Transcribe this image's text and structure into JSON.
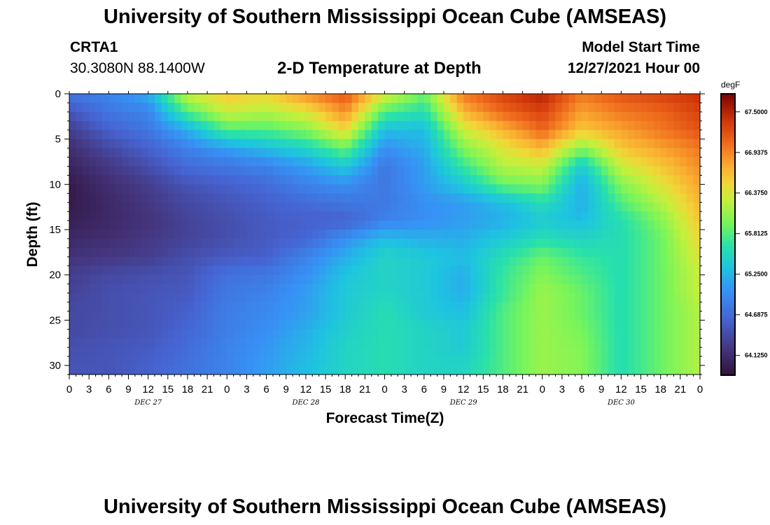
{
  "header": {
    "title": "University of Southern Mississippi Ocean Cube (AMSEAS)",
    "station": "CRTA1",
    "coords": "30.3080N  88.1400W",
    "subtitle": "2-D Temperature at Depth",
    "model_start_label": "Model Start Time",
    "model_start_value": "12/27/2021 Hour 00"
  },
  "footer": {
    "title_repeat": "University of Southern Mississippi Ocean Cube (AMSEAS)"
  },
  "chart_data": {
    "type": "heatmap",
    "title": "2-D Temperature at Depth",
    "xlabel": "Forecast Time(Z)",
    "ylabel": "Depth (ft)",
    "x_hours_range": [
      0,
      96
    ],
    "ylim": [
      0,
      31
    ],
    "x_tick_labels": [
      "0",
      "3",
      "6",
      "9",
      "12",
      "15",
      "18",
      "21",
      "0",
      "3",
      "6",
      "9",
      "12",
      "15",
      "18",
      "21",
      "0",
      "3",
      "6",
      "9",
      "12",
      "15",
      "18",
      "21",
      "0",
      "3",
      "6",
      "9",
      "12",
      "15",
      "18",
      "21",
      "0"
    ],
    "day_labels": [
      {
        "label": "DEC 27",
        "center_hour": 12
      },
      {
        "label": "DEC 28",
        "center_hour": 36
      },
      {
        "label": "DEC 29",
        "center_hour": 60
      },
      {
        "label": "DEC 30",
        "center_hour": 84
      }
    ],
    "y_ticks": [
      0,
      5,
      10,
      15,
      20,
      25,
      30
    ],
    "colorbar": {
      "unit": "degF",
      "range": [
        63.85,
        67.75
      ],
      "tick_values": [
        67.5,
        66.9375,
        66.375,
        65.8125,
        65.25,
        64.6875,
        64.125
      ],
      "tick_labels": [
        "67.5000",
        "66.9375",
        "66.3750",
        "65.8125",
        "65.2500",
        "64.6875",
        "64.1250"
      ]
    },
    "x_hours": [
      0,
      6,
      12,
      18,
      24,
      30,
      36,
      42,
      48,
      54,
      60,
      66,
      72,
      78,
      84,
      90,
      96
    ],
    "depths_ft": [
      0,
      2,
      4,
      6,
      8,
      10,
      12,
      14,
      16,
      18,
      20,
      22,
      24,
      26,
      28,
      30,
      31
    ],
    "values_degF": [
      [
        64.8,
        64.9,
        65.2,
        66.3,
        66.6,
        66.5,
        66.9,
        67.2,
        66.4,
        65.9,
        67.0,
        67.3,
        67.5,
        67.0,
        67.2,
        67.3,
        67.4
      ],
      [
        64.5,
        64.8,
        64.9,
        65.8,
        66.3,
        66.2,
        66.4,
        66.9,
        65.8,
        65.6,
        66.7,
        67.1,
        67.3,
        66.8,
        67.0,
        67.1,
        67.3
      ],
      [
        64.3,
        64.6,
        64.8,
        65.2,
        65.8,
        65.8,
        66.0,
        66.5,
        65.3,
        65.3,
        66.3,
        66.7,
        67.1,
        66.6,
        66.8,
        67.0,
        67.2
      ],
      [
        64.15,
        64.4,
        64.6,
        64.9,
        65.1,
        65.3,
        65.5,
        65.9,
        65.0,
        65.2,
        66.0,
        66.4,
        66.7,
        66.0,
        66.6,
        66.8,
        67.0
      ],
      [
        64.05,
        64.25,
        64.45,
        64.7,
        64.8,
        64.9,
        65.1,
        65.4,
        64.8,
        65.1,
        65.7,
        66.2,
        66.3,
        65.4,
        66.3,
        66.6,
        66.9
      ],
      [
        63.95,
        64.15,
        64.3,
        64.5,
        64.6,
        64.7,
        64.9,
        65.0,
        64.8,
        65.1,
        65.4,
        65.9,
        66.0,
        65.2,
        66.0,
        66.4,
        66.8
      ],
      [
        63.95,
        64.1,
        64.25,
        64.4,
        64.5,
        64.6,
        64.7,
        64.8,
        64.8,
        65.0,
        65.1,
        65.3,
        65.6,
        65.2,
        65.8,
        66.2,
        66.7
      ],
      [
        64.0,
        64.1,
        64.2,
        64.35,
        64.45,
        64.55,
        64.6,
        64.6,
        64.9,
        65.0,
        65.1,
        65.2,
        65.4,
        65.3,
        65.6,
        66.0,
        66.6
      ],
      [
        64.1,
        64.15,
        64.25,
        64.35,
        64.45,
        64.55,
        64.65,
        65.0,
        65.3,
        65.2,
        65.2,
        65.4,
        65.6,
        65.5,
        65.6,
        65.9,
        66.5
      ],
      [
        64.2,
        64.25,
        64.3,
        64.45,
        64.55,
        64.6,
        64.9,
        65.2,
        65.5,
        65.4,
        65.3,
        65.6,
        65.9,
        65.7,
        65.6,
        65.9,
        66.4
      ],
      [
        64.3,
        64.4,
        64.45,
        64.5,
        64.75,
        64.8,
        65.0,
        65.35,
        65.5,
        65.4,
        65.2,
        65.7,
        66.0,
        65.8,
        65.6,
        65.9,
        66.3
      ],
      [
        64.35,
        64.45,
        64.5,
        64.55,
        64.8,
        64.9,
        65.1,
        65.4,
        65.5,
        65.4,
        65.2,
        65.7,
        66.1,
        65.9,
        65.6,
        65.9,
        66.3
      ],
      [
        64.4,
        64.45,
        64.5,
        64.6,
        64.85,
        64.95,
        65.1,
        65.4,
        65.6,
        65.4,
        65.3,
        65.8,
        66.1,
        65.9,
        65.6,
        65.9,
        66.2
      ],
      [
        64.4,
        64.45,
        64.5,
        64.65,
        64.85,
        65.0,
        65.2,
        65.45,
        65.6,
        65.5,
        65.4,
        65.8,
        66.1,
        65.95,
        65.6,
        65.9,
        66.2
      ],
      [
        64.45,
        64.5,
        64.55,
        64.7,
        64.9,
        65.05,
        65.25,
        65.5,
        65.6,
        65.5,
        65.4,
        65.8,
        66.1,
        66.0,
        65.6,
        65.9,
        66.2
      ],
      [
        64.5,
        64.5,
        64.6,
        64.75,
        64.9,
        65.1,
        65.3,
        65.5,
        65.6,
        65.5,
        65.5,
        65.8,
        66.1,
        66.0,
        65.6,
        65.9,
        66.2
      ],
      [
        64.5,
        64.5,
        64.6,
        64.75,
        64.9,
        65.1,
        65.3,
        65.5,
        65.6,
        65.5,
        65.5,
        65.8,
        66.1,
        66.0,
        65.6,
        65.9,
        66.2
      ]
    ]
  }
}
